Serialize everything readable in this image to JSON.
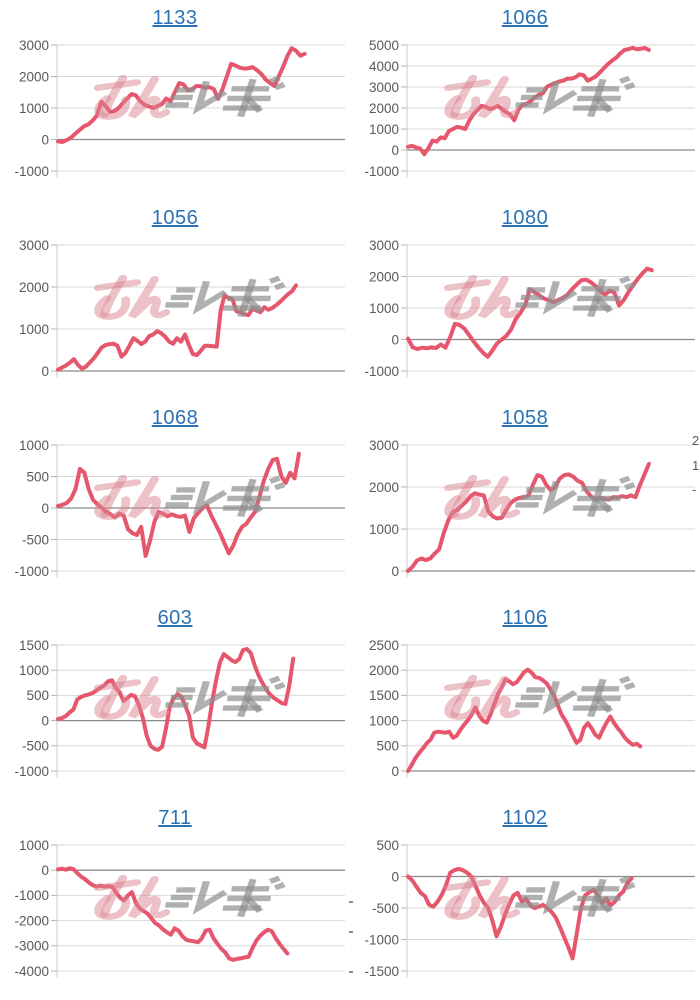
{
  "page": {
    "background": "#ffffff"
  },
  "colors": {
    "title_link": "#2a72b5",
    "line": "#e6566c",
    "grid": "#dadada",
    "zero_line": "#8a8a8a",
    "axis": "#c8c8c8",
    "tick_mark": "#b5b5b5",
    "tick_label": "#595959",
    "watermark_pink": "#d9838f",
    "watermark_gray": "#8f8f8f"
  },
  "watermark": {
    "name": "minrepo-logo",
    "text": "みんレポ"
  },
  "edge_fragments": {
    "right": [
      {
        "y": 434,
        "text": "2"
      },
      {
        "y": 459,
        "text": "1"
      },
      {
        "y": 483,
        "text": "-"
      }
    ],
    "mid_dashes": [
      901,
      931,
      971
    ]
  },
  "chart_data": [
    {
      "type": "line",
      "title": "1133",
      "ylim": [
        -1000,
        3000
      ],
      "yticks": [
        3000,
        2000,
        1000,
        0,
        -1000
      ],
      "span": 0.86,
      "values": [
        -60,
        -80,
        -20,
        60,
        180,
        300,
        420,
        480,
        600,
        760,
        1200,
        1060,
        880,
        900,
        1000,
        1160,
        1300,
        1440,
        1400,
        1220,
        1100,
        1050,
        1000,
        1060,
        1120,
        1300,
        1210,
        1500,
        1790,
        1750,
        1560,
        1600,
        1700,
        1690,
        1640,
        1660,
        1600,
        1290,
        1600,
        2000,
        2400,
        2350,
        2280,
        2250,
        2260,
        2300,
        2200,
        2080,
        1900,
        1790,
        1700,
        2000,
        2300,
        2650,
        2900,
        2820,
        2660,
        2720
      ]
    },
    {
      "type": "line",
      "title": "1066",
      "ylim": [
        -1000,
        5000
      ],
      "yticks": [
        5000,
        4000,
        3000,
        2000,
        1000,
        0,
        -1000
      ],
      "span": 0.84,
      "values": [
        150,
        200,
        120,
        60,
        -200,
        80,
        450,
        400,
        600,
        560,
        900,
        1000,
        1100,
        1060,
        1000,
        1400,
        1700,
        1900,
        2100,
        2060,
        1950,
        2000,
        2100,
        1950,
        1800,
        1700,
        1420,
        1900,
        2150,
        2200,
        2320,
        2500,
        2620,
        2700,
        3000,
        3100,
        3180,
        3260,
        3300,
        3400,
        3400,
        3460,
        3600,
        3560,
        3300,
        3400,
        3500,
        3700,
        3900,
        4100,
        4260,
        4400,
        4600,
        4760,
        4800,
        4860,
        4800,
        4820,
        4860,
        4760
      ]
    },
    {
      "type": "line",
      "title": "1056",
      "ylim": [
        0,
        3000
      ],
      "yticks": [
        3000,
        2000,
        1000,
        0
      ],
      "span": 0.83,
      "values": [
        30,
        80,
        130,
        200,
        280,
        150,
        60,
        100,
        200,
        300,
        430,
        560,
        620,
        640,
        650,
        600,
        340,
        430,
        600,
        780,
        720,
        640,
        700,
        830,
        870,
        950,
        900,
        820,
        700,
        650,
        780,
        700,
        870,
        620,
        400,
        380,
        480,
        600,
        600,
        590,
        580,
        1450,
        1800,
        1740,
        1700,
        1420,
        1400,
        1350,
        1330,
        1480,
        1440,
        1400,
        1520,
        1460,
        1500,
        1570,
        1650,
        1740,
        1830,
        1900,
        2040
      ]
    },
    {
      "type": "line",
      "title": "1080",
      "ylim": [
        -1000,
        3000
      ],
      "yticks": [
        3000,
        2000,
        1000,
        0,
        -1000
      ],
      "span": 0.85,
      "values": [
        30,
        -250,
        -300,
        -260,
        -280,
        -250,
        -270,
        -160,
        -260,
        80,
        500,
        460,
        350,
        150,
        -60,
        -250,
        -420,
        -550,
        -350,
        -120,
        0,
        120,
        320,
        650,
        850,
        1100,
        1600,
        1500,
        1400,
        1300,
        1250,
        1180,
        1250,
        1320,
        1420,
        1600,
        1750,
        1880,
        1900,
        1820,
        1700,
        1550,
        1420,
        1550,
        1500,
        1080,
        1250,
        1500,
        1720,
        1920,
        2100,
        2250,
        2200
      ]
    },
    {
      "type": "line",
      "title": "1068",
      "ylim": [
        -1000,
        1000
      ],
      "yticks": [
        1000,
        500,
        0,
        -500,
        -1000
      ],
      "span": 0.84,
      "values": [
        30,
        50,
        80,
        150,
        300,
        620,
        560,
        300,
        130,
        60,
        0,
        -60,
        -100,
        -150,
        -90,
        -120,
        -340,
        -400,
        -430,
        -300,
        -760,
        -520,
        -220,
        -60,
        -90,
        -130,
        -100,
        -130,
        -140,
        -120,
        -380,
        -160,
        -80,
        0,
        40,
        -120,
        -260,
        -400,
        -560,
        -720,
        -600,
        -420,
        -300,
        -250,
        -150,
        -60,
        180,
        440,
        620,
        760,
        780,
        500,
        400,
        560,
        470,
        860
      ]
    },
    {
      "type": "line",
      "title": "1058",
      "ylim": [
        0,
        3000
      ],
      "yticks": [
        3000,
        2000,
        1000,
        0
      ],
      "span": 0.84,
      "values": [
        0,
        100,
        250,
        300,
        260,
        300,
        420,
        520,
        900,
        1200,
        1400,
        1450,
        1550,
        1650,
        1780,
        1850,
        1820,
        1800,
        1420,
        1300,
        1250,
        1270,
        1450,
        1620,
        1700,
        1740,
        1750,
        1800,
        2050,
        2280,
        2250,
        2050,
        1920,
        2000,
        2200,
        2280,
        2300,
        2250,
        2150,
        2100,
        1900,
        1780,
        1700,
        1750,
        1720,
        1700,
        1760,
        1750,
        1780,
        1760,
        1800,
        1760,
        2050,
        2300,
        2550
      ]
    },
    {
      "type": "line",
      "title": "603",
      "ylim": [
        -1000,
        1500
      ],
      "yticks": [
        1500,
        1000,
        500,
        0,
        -500,
        -1000
      ],
      "span": 0.82,
      "values": [
        30,
        50,
        90,
        160,
        220,
        420,
        470,
        500,
        520,
        550,
        600,
        650,
        700,
        780,
        800,
        650,
        560,
        390,
        450,
        510,
        480,
        300,
        60,
        -300,
        -500,
        -560,
        -580,
        -520,
        -160,
        280,
        450,
        520,
        480,
        300,
        100,
        -340,
        -450,
        -490,
        -530,
        -120,
        380,
        800,
        1150,
        1320,
        1260,
        1200,
        1160,
        1220,
        1400,
        1420,
        1340,
        1100,
        900,
        750,
        620,
        520,
        450,
        400,
        350,
        330,
        700,
        1230
      ]
    },
    {
      "type": "line",
      "title": "1106",
      "ylim": [
        0,
        2500
      ],
      "yticks": [
        2500,
        2000,
        1500,
        1000,
        500,
        0
      ],
      "span": 0.81,
      "values": [
        0,
        120,
        260,
        360,
        450,
        550,
        620,
        760,
        780,
        770,
        760,
        780,
        660,
        700,
        820,
        920,
        1010,
        1120,
        1260,
        1100,
        1000,
        960,
        1120,
        1320,
        1520,
        1660,
        1820,
        1780,
        1720,
        1760,
        1860,
        1960,
        2010,
        1950,
        1860,
        1850,
        1800,
        1740,
        1620,
        1500,
        1300,
        1120,
        1000,
        860,
        700,
        560,
        620,
        860,
        950,
        850,
        720,
        660,
        820,
        960,
        1080,
        950,
        850,
        760,
        650,
        580,
        520,
        540,
        490
      ]
    },
    {
      "type": "line",
      "title": "711",
      "ylim": [
        -4000,
        1000
      ],
      "yticks": [
        1000,
        0,
        -1000,
        -2000,
        -3000,
        -4000
      ],
      "span": 0.8,
      "values": [
        30,
        60,
        20,
        80,
        40,
        -120,
        -260,
        -360,
        -500,
        -600,
        -650,
        -610,
        -650,
        -630,
        -660,
        -900,
        -1100,
        -1200,
        -1000,
        -870,
        -1300,
        -1520,
        -1620,
        -1720,
        -1900,
        -2100,
        -2200,
        -2350,
        -2460,
        -2560,
        -2300,
        -2400,
        -2620,
        -2760,
        -2800,
        -2820,
        -2860,
        -2700,
        -2400,
        -2360,
        -2700,
        -2920,
        -3120,
        -3260,
        -3500,
        -3560,
        -3520,
        -3500,
        -3460,
        -3440,
        -3100,
        -2800,
        -2600,
        -2460,
        -2360,
        -2420,
        -2700,
        -2920,
        -3120,
        -3300
      ]
    },
    {
      "type": "line",
      "title": "1102",
      "ylim": [
        -1500,
        500
      ],
      "yticks": [
        500,
        0,
        -500,
        -1000,
        -1500
      ],
      "span": 0.78,
      "values": [
        0,
        -60,
        -160,
        -260,
        -310,
        -450,
        -480,
        -400,
        -290,
        -140,
        60,
        100,
        120,
        100,
        60,
        0,
        -150,
        -300,
        -420,
        -500,
        -700,
        -950,
        -800,
        -600,
        -440,
        -300,
        -260,
        -400,
        -350,
        -460,
        -500,
        -480,
        -450,
        -500,
        -560,
        -650,
        -800,
        -960,
        -1120,
        -1300,
        -900,
        -500,
        -300,
        -250,
        -210,
        -300,
        -420,
        -350,
        -460,
        -400,
        -300,
        -240,
        -100,
        -30
      ]
    }
  ]
}
